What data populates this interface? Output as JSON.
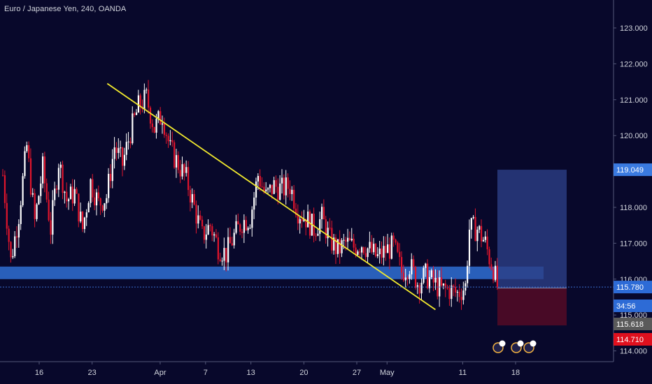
{
  "header": {
    "title": "Euro / Japanese Yen, 240, OANDA"
  },
  "chart_data": {
    "type": "candlestick",
    "title": "Euro / Japanese Yen, 240, OANDA",
    "ylim": [
      113.65,
      124.0
    ],
    "y_ticks": [
      "114.000",
      "115.000",
      "116.000",
      "117.000",
      "118.000",
      "119.000",
      "120.000",
      "121.000",
      "122.000",
      "123.000"
    ],
    "x_ticks": [
      "16",
      "23",
      "Apr",
      "7",
      "13",
      "20",
      "27",
      "May",
      "11",
      "18"
    ],
    "price_tags": {
      "target": "119.049",
      "last": "115.780",
      "countdown": "34:56",
      "crosshair": "115.618",
      "stop": "114.710"
    },
    "colors": {
      "background": "#08082b",
      "up_candle": "#ffffff",
      "down_candle": "#e0152c",
      "trendline": "#f2ea2e",
      "support_zone": "#2f6fd4",
      "target_zone": "#2c3f86",
      "stop_zone": "#4c0b26",
      "target_tag": "#3a7ae0",
      "last_tag": "#2d6bd6",
      "crosshair_tag": "#5a5a5a",
      "stop_tag": "#e0101e"
    },
    "support_zone": [
      116.0,
      116.35
    ],
    "trendline": {
      "from": [
        "Mar 25",
        121.45
      ],
      "to": [
        "May 7",
        115.15
      ]
    },
    "position": {
      "entry": 115.75,
      "target": 119.049,
      "stop": 114.71
    },
    "anchors": [
      [
        0,
        118.9
      ],
      [
        4,
        116.5
      ],
      [
        8,
        117.8
      ],
      [
        12,
        119.7
      ],
      [
        16,
        117.6
      ],
      [
        20,
        119.1
      ],
      [
        24,
        117.4
      ],
      [
        28,
        119.3
      ],
      [
        32,
        118.2
      ],
      [
        36,
        118.4
      ],
      [
        40,
        117.4
      ],
      [
        44,
        118.7
      ],
      [
        48,
        118.1
      ],
      [
        52,
        118.3
      ],
      [
        56,
        119.7
      ],
      [
        60,
        119.2
      ],
      [
        64,
        120.1
      ],
      [
        68,
        120.8
      ],
      [
        72,
        121.05
      ],
      [
        76,
        120.2
      ],
      [
        80,
        120.6
      ],
      [
        84,
        119.6
      ],
      [
        88,
        119.2
      ],
      [
        92,
        118.8
      ],
      [
        96,
        118.0
      ],
      [
        100,
        117.2
      ],
      [
        104,
        117.5
      ],
      [
        108,
        116.9
      ],
      [
        112,
        116.7
      ],
      [
        116,
        117.2
      ],
      [
        120,
        117.6
      ],
      [
        124,
        117.7
      ],
      [
        128,
        118.9
      ],
      [
        132,
        118.3
      ],
      [
        136,
        118.6
      ],
      [
        140,
        118.5
      ],
      [
        144,
        118.6
      ],
      [
        148,
        117.9
      ],
      [
        152,
        117.7
      ],
      [
        156,
        117.4
      ],
      [
        160,
        117.7
      ],
      [
        164,
        117.1
      ],
      [
        168,
        116.8
      ],
      [
        172,
        117.0
      ],
      [
        176,
        116.9
      ],
      [
        180,
        117.0
      ],
      [
        184,
        116.8
      ],
      [
        188,
        116.6
      ],
      [
        192,
        116.8
      ],
      [
        196,
        116.9
      ],
      [
        200,
        116.2
      ],
      [
        204,
        116.4
      ],
      [
        208,
        115.9
      ],
      [
        212,
        116.1
      ],
      [
        216,
        115.9
      ],
      [
        220,
        115.7
      ],
      [
        224,
        115.7
      ],
      [
        228,
        115.6
      ],
      [
        232,
        115.8
      ],
      [
        234,
        117.4
      ],
      [
        238,
        117.4
      ],
      [
        242,
        117.0
      ],
      [
        244,
        116.6
      ],
      [
        246,
        116.3
      ],
      [
        248,
        115.8
      ]
    ]
  }
}
